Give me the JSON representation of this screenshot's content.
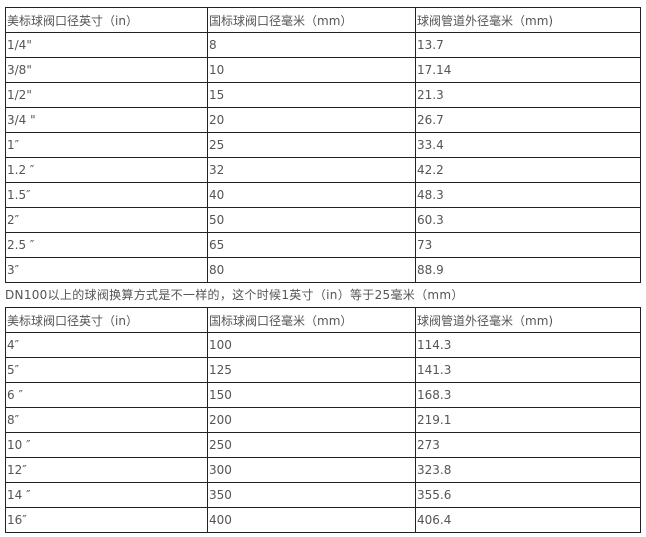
{
  "table1": {
    "headers": [
      "美标球阀口径英寸（in）",
      "国标球阀口径毫米（mm）",
      "球阀管道外径毫米（mm)"
    ],
    "rows": [
      [
        "1/4\"",
        "8",
        "13.7"
      ],
      [
        "3/8\"",
        "10",
        "17.14"
      ],
      [
        "1/2\"",
        "15",
        "21.3"
      ],
      [
        "3/4 \"",
        "20",
        "26.7"
      ],
      [
        "1″",
        "25",
        "33.4"
      ],
      [
        "1.2 ″",
        "32",
        "42.2"
      ],
      [
        "1.5″",
        "40",
        "48.3"
      ],
      [
        "2″",
        "50",
        "60.3"
      ],
      [
        "2.5 ″",
        "65",
        "73"
      ],
      [
        "3″",
        "80",
        "88.9"
      ]
    ]
  },
  "note": "DN100以上的球阀换算方式是不一样的，这个时候1英寸（in）等于25毫米（mm）",
  "table2": {
    "headers": [
      "美标球阀口径英寸（in）",
      "国标球阀口径毫米（mm）",
      "球阀管道外径毫米（mm)"
    ],
    "rows": [
      [
        "4″",
        "100",
        "114.3"
      ],
      [
        "5″",
        "125",
        "141.3"
      ],
      [
        "6 ″",
        "150",
        "168.3"
      ],
      [
        "8″",
        "200",
        "219.1"
      ],
      [
        "10 ″",
        "250",
        "273"
      ],
      [
        "12″",
        "300",
        "323.8"
      ],
      [
        "14 ″",
        "350",
        "355.6"
      ],
      [
        "16″",
        "400",
        "406.4"
      ]
    ]
  }
}
